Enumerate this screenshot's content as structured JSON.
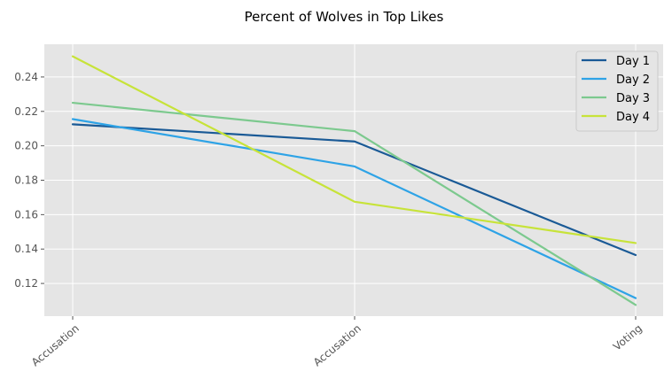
{
  "chart_data": {
    "type": "line",
    "title": "Percent of Wolves in Top Likes",
    "xlabel": "",
    "ylabel": "",
    "categories": [
      "Accusation",
      "Accusation",
      "Voting"
    ],
    "ylim": [
      0.101,
      0.259
    ],
    "yticks": [
      0.12,
      0.14,
      0.16,
      0.18,
      0.2,
      0.22,
      0.24
    ],
    "ytick_labels": [
      "0.12",
      "0.14",
      "0.16",
      "0.18",
      "0.20",
      "0.22",
      "0.24"
    ],
    "grid": true,
    "legend_position": "top-right",
    "series": [
      {
        "name": "Day 1",
        "color": "#1a5a96",
        "values": [
          0.2125,
          0.2025,
          0.1365
        ]
      },
      {
        "name": "Day 2",
        "color": "#2ea3e6",
        "values": [
          0.2155,
          0.188,
          0.1115
        ]
      },
      {
        "name": "Day 3",
        "color": "#7cc98e",
        "values": [
          0.225,
          0.2085,
          0.1075
        ]
      },
      {
        "name": "Day 4",
        "color": "#c7e339",
        "values": [
          0.252,
          0.1675,
          0.1435
        ]
      }
    ]
  }
}
